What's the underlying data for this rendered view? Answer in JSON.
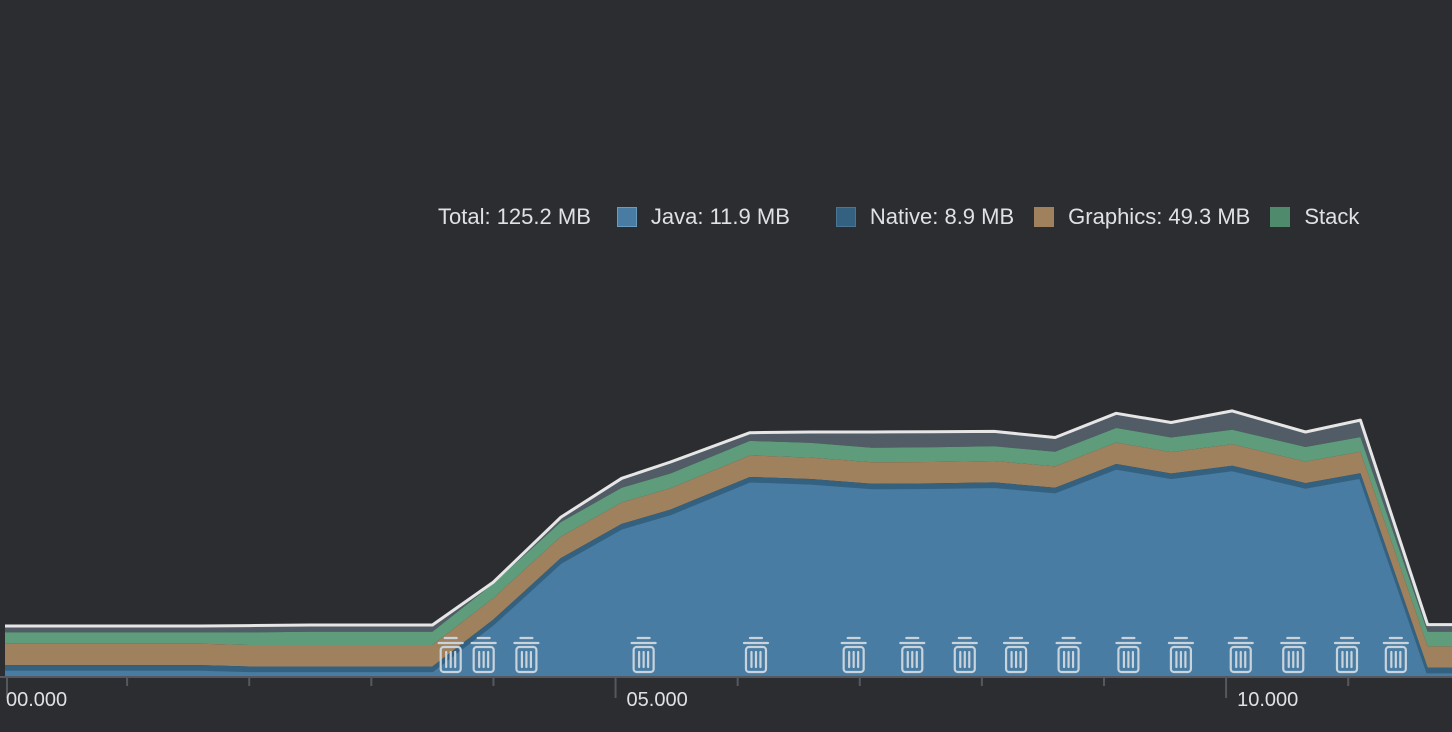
{
  "legend": {
    "total": "Total: 125.2 MB",
    "java": "Java: 11.9 MB",
    "native": "Native: 8.9 MB",
    "graphics": "Graphics: 49.3 MB",
    "stack": "Stack"
  },
  "colors": {
    "background": "#2b2d30",
    "java": "#487ca3",
    "java_edge": "#34617f",
    "native": "#34617f",
    "graphics": "#a0815d",
    "stack": "#5e9c7c",
    "other": "#515c66",
    "total_line": "#e6e6e6",
    "axis": "#55595f",
    "text": "#dfe1e5",
    "gc_icon": "#c9d3dc"
  },
  "chart_data": {
    "type": "area",
    "x_unit": "seconds",
    "xlim": [
      0,
      11.85
    ],
    "ylim": [
      0,
      125.2
    ],
    "x_tick_labels": [
      {
        "x": 0,
        "label": "00.000"
      },
      {
        "x": 5,
        "label": "05.000"
      },
      {
        "x": 10,
        "label": "10.000"
      }
    ],
    "minor_tick_step": 1,
    "x": [
      0,
      1.0,
      1.6,
      2.0,
      2.5,
      3.1,
      3.5,
      4.0,
      4.55,
      5.05,
      5.45,
      6.1,
      6.6,
      7.1,
      7.6,
      8.1,
      8.6,
      9.1,
      9.55,
      10.05,
      10.65,
      11.1,
      11.65,
      11.85
    ],
    "series": [
      {
        "key": "java",
        "values": [
          2,
          2,
          2,
          1.6,
          1.6,
          1.6,
          1.6,
          15.4,
          33.4,
          43.5,
          47.7,
          57.3,
          56.7,
          55.3,
          55.4,
          55.7,
          54.1,
          61.1,
          58.3,
          60.6,
          55.5,
          58.4,
          1.2,
          1.2
        ]
      },
      {
        "key": "native",
        "values": [
          1.2,
          1.2,
          1.2,
          1.2,
          1.2,
          1.2,
          1.2,
          1.2,
          1.2,
          1.2,
          1.2,
          1.2,
          1.2,
          1.2,
          1.2,
          1.2,
          1.2,
          1.2,
          1.2,
          1.2,
          1.2,
          1.2,
          1.2,
          1.2
        ]
      },
      {
        "key": "graphics",
        "values": [
          6.3,
          6.3,
          6.3,
          6.3,
          6.3,
          6.3,
          6.3,
          6.3,
          6.3,
          6.3,
          6.3,
          6.3,
          6.3,
          6.3,
          6.3,
          6.3,
          6.3,
          6.3,
          6.3,
          6.3,
          6.3,
          6.3,
          6.3,
          6.3
        ]
      },
      {
        "key": "stack",
        "values": [
          3.3,
          3.3,
          3.3,
          3.7,
          3.9,
          3.9,
          3.9,
          4.3,
          4.3,
          4.3,
          4.3,
          4.3,
          4.3,
          4.3,
          4.3,
          4.3,
          4.3,
          4.3,
          4.3,
          4.3,
          4.3,
          4.3,
          4.3,
          4.3
        ]
      },
      {
        "key": "other",
        "values": [
          1.9,
          1.9,
          1.9,
          2.0,
          2.0,
          2.0,
          2.0,
          0.4,
          1.4,
          2.8,
          3.4,
          2.4,
          3.2,
          4.6,
          4.6,
          4.4,
          4.2,
          4.3,
          4.4,
          5.5,
          4.4,
          5.0,
          2.1,
          2.1
        ]
      }
    ],
    "gc_events_x": [
      3.65,
      3.92,
      4.27,
      5.23,
      6.15,
      6.95,
      7.43,
      7.86,
      8.28,
      8.71,
      9.2,
      9.63,
      10.12,
      10.55,
      10.99,
      11.39
    ],
    "grid": false,
    "legend_position": "top"
  }
}
